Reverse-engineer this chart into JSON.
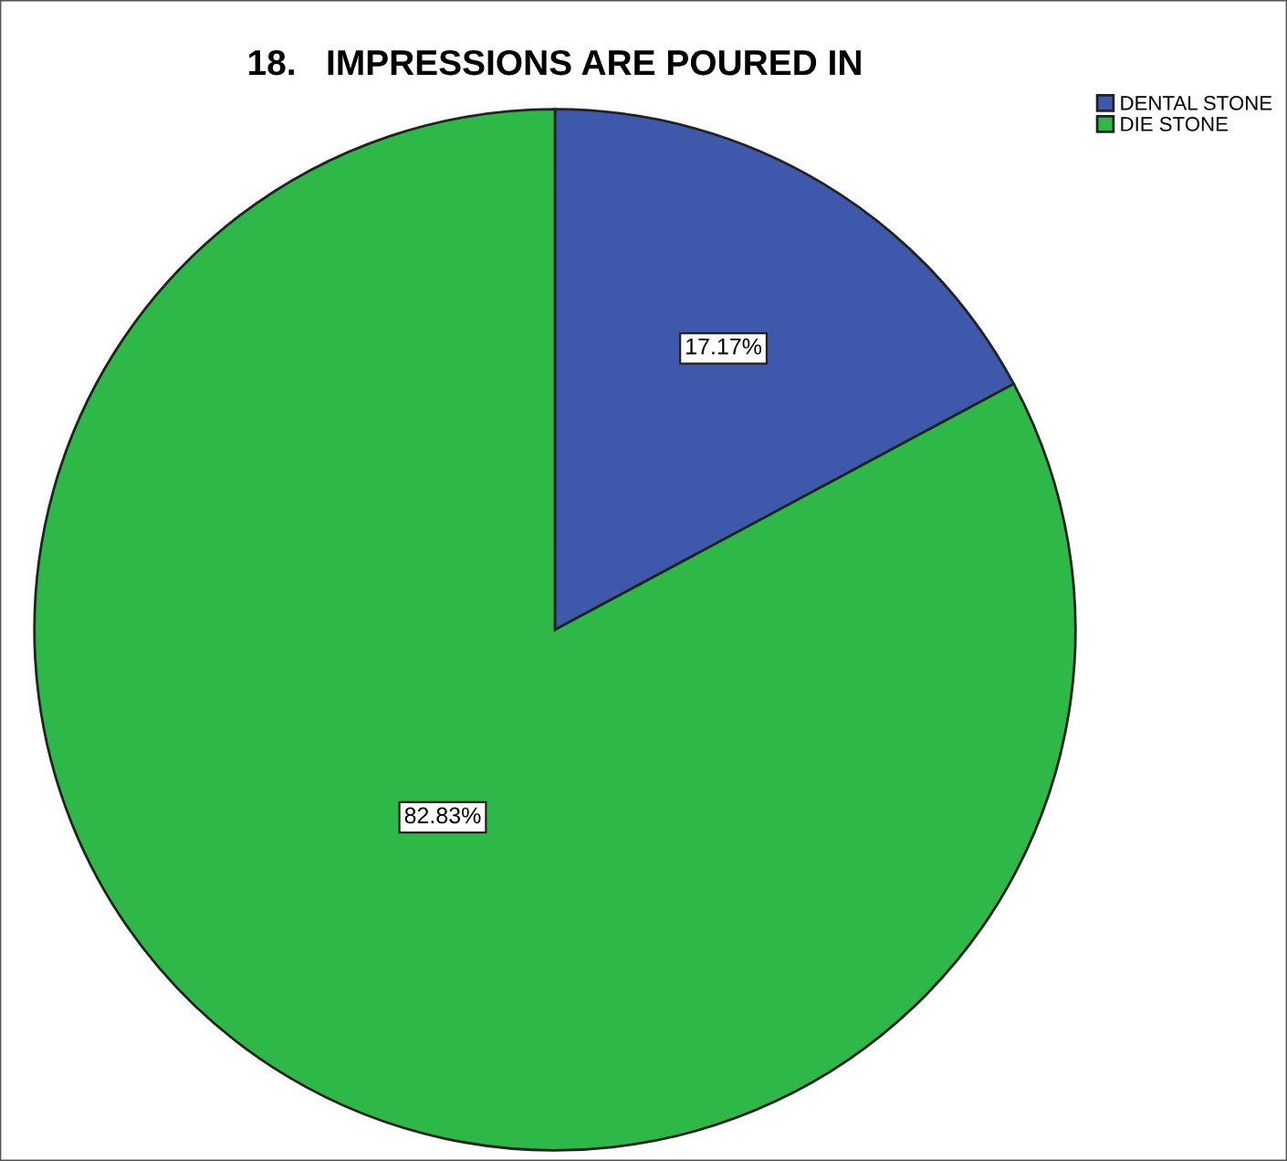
{
  "chart_data": {
    "type": "pie",
    "title": "18.   IMPRESSIONS ARE POURED IN",
    "categories": [
      "DENTAL STONE",
      "DIE STONE"
    ],
    "values": [
      17.17,
      82.83
    ],
    "colors": [
      "#3e58ac",
      "#2eb848"
    ],
    "value_labels": [
      "17.17%",
      "82.83%"
    ],
    "legend": "top right"
  }
}
